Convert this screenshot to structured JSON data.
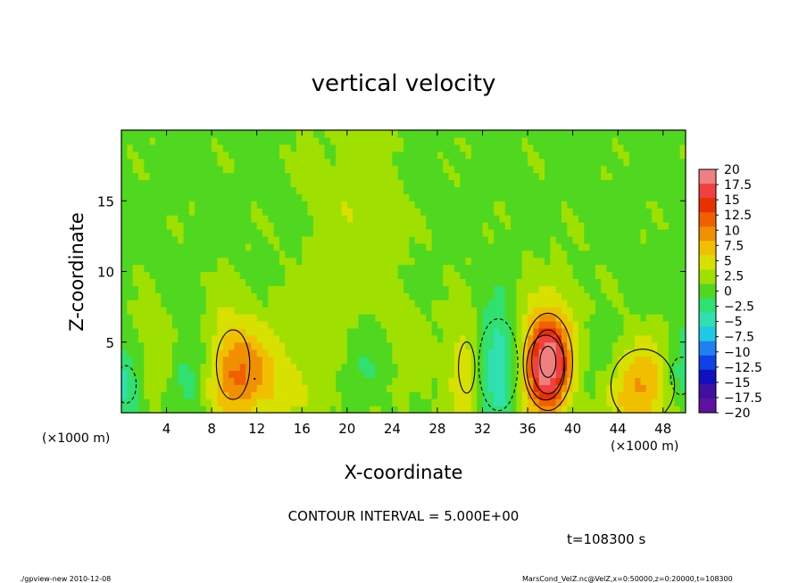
{
  "chart_data": {
    "type": "heatmap",
    "title": "vertical velocity",
    "xlabel": "X-coordinate",
    "ylabel": "Z-coordinate",
    "x_unit_left": "(×1000 m)",
    "x_unit_right": "(×1000 m)",
    "xlim": [
      0,
      50
    ],
    "ylim": [
      0,
      20
    ],
    "x_ticks": [
      4,
      8,
      12,
      16,
      20,
      24,
      28,
      32,
      36,
      40,
      44,
      48
    ],
    "y_ticks": [
      5,
      10,
      15
    ],
    "contour_interval_text": "CONTOUR INTERVAL = 5.000E+00",
    "time_text": "t=108300 s",
    "colorbar": {
      "labels": [
        "20",
        "17.5",
        "15",
        "12.5",
        "10",
        "7.5",
        "5",
        "2.5",
        "0",
        "−2.5",
        "−5",
        "−7.5",
        "−10",
        "−12.5",
        "−15",
        "−17.5",
        "−20"
      ],
      "colors": [
        "#f08080",
        "#f04040",
        "#e83000",
        "#f06000",
        "#f09000",
        "#f0c000",
        "#d8e000",
        "#a0e000",
        "#50d820",
        "#30e070",
        "#30e0b0",
        "#20c8e8",
        "#2080f0",
        "#1040e8",
        "#1010c0",
        "#4010a0",
        "#6010a0"
      ]
    },
    "features": [
      {
        "x": 37.8,
        "z": 3.6,
        "value": 17,
        "sx": 1.4,
        "sz": 2.2
      },
      {
        "x": 37.6,
        "z": 3.2,
        "value": 6,
        "sx": 2.8,
        "sz": 3.8
      },
      {
        "x": 46.2,
        "z": 1.9,
        "value": 9,
        "sx": 2.6,
        "sz": 2.4
      },
      {
        "x": 9.9,
        "z": 3.4,
        "value": 7,
        "sx": 1.8,
        "sz": 3.0
      },
      {
        "x": 11.8,
        "z": 2.4,
        "value": 5,
        "sx": 2.5,
        "sz": 2.0
      },
      {
        "x": 30.6,
        "z": 3.2,
        "value": 6,
        "sx": 1.2,
        "sz": 3.0
      },
      {
        "x": 2.5,
        "z": 3.5,
        "value": 4,
        "sx": 1.6,
        "sz": 2.5
      },
      {
        "x": 25.1,
        "z": 4.1,
        "value": 3.5,
        "sx": 1.6,
        "sz": 2.5
      },
      {
        "x": 33.4,
        "z": 3.4,
        "value": -9,
        "sx": 1.6,
        "sz": 3.0
      },
      {
        "x": 0.4,
        "z": 2.0,
        "value": -6,
        "sx": 1.5,
        "sz": 2.2
      },
      {
        "x": 49.6,
        "z": 2.6,
        "value": -6,
        "sx": 1.5,
        "sz": 2.2
      },
      {
        "x": 6.0,
        "z": 3.0,
        "value": -4,
        "sx": 1.3,
        "sz": 2.2
      },
      {
        "x": 22.0,
        "z": 3.5,
        "value": -4,
        "sx": 2.5,
        "sz": 2.2
      },
      {
        "x": 41.5,
        "z": 3.0,
        "value": -4,
        "sx": 2.2,
        "sz": 2.5
      },
      {
        "x": 18.0,
        "z": 3.0,
        "value": 2.5,
        "sx": 4.0,
        "sz": 3.5
      },
      {
        "x": 20.5,
        "z": 14.0,
        "value": 2.5,
        "sx": 3.0,
        "sz": 5.0
      }
    ],
    "legend_position": "right",
    "grid": false
  },
  "footer": {
    "left": "./gpview-new 2010-12-08",
    "right": "MarsCond_VelZ.nc@VelZ,x=0:50000,z=0:20000,t=108300"
  }
}
